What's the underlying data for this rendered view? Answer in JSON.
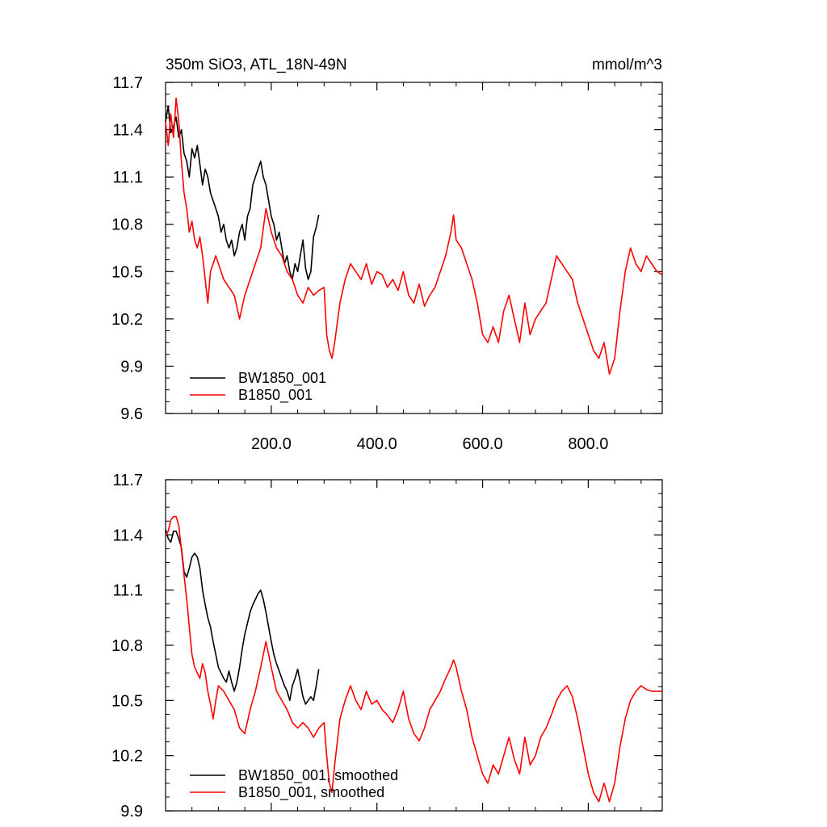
{
  "chart_data": [
    {
      "type": "line",
      "title": "350m SiO3, ATL_18N-49N",
      "units_label": "mmol/m^3",
      "xlim": [
        0,
        940
      ],
      "ylim": [
        9.6,
        11.7
      ],
      "yticks": [
        9.6,
        9.9,
        10.2,
        10.5,
        10.8,
        11.1,
        11.4,
        11.7
      ],
      "ytick_labels": [
        "9.6",
        "9.9",
        "10.2",
        "10.5",
        "10.8",
        "11.1",
        "11.4",
        "11.7"
      ],
      "xticks": [
        200,
        400,
        600,
        800
      ],
      "xtick_labels": [
        "200.0",
        "400.0",
        "600.0",
        "800.0"
      ],
      "legend_position": "bottom-left",
      "series": [
        {
          "name": "BW1850_001",
          "color": "#000000",
          "x": [
            0,
            5,
            10,
            15,
            20,
            25,
            30,
            35,
            40,
            45,
            50,
            55,
            60,
            65,
            70,
            75,
            80,
            85,
            90,
            95,
            100,
            105,
            110,
            115,
            120,
            125,
            130,
            135,
            140,
            145,
            150,
            155,
            160,
            165,
            170,
            175,
            180,
            185,
            190,
            195,
            200,
            205,
            210,
            215,
            220,
            225,
            230,
            235,
            240,
            245,
            250,
            255,
            260,
            265,
            270,
            275,
            280,
            285,
            290
          ],
          "y": [
            11.45,
            11.55,
            11.38,
            11.42,
            11.48,
            11.35,
            11.4,
            11.25,
            11.2,
            11.1,
            11.28,
            11.22,
            11.3,
            11.18,
            11.05,
            11.15,
            11.1,
            11.0,
            10.95,
            10.9,
            10.85,
            10.75,
            10.8,
            10.7,
            10.65,
            10.7,
            10.6,
            10.65,
            10.75,
            10.8,
            10.7,
            10.85,
            10.9,
            11.05,
            11.1,
            11.15,
            11.2,
            11.1,
            11.05,
            10.95,
            10.85,
            10.8,
            10.7,
            10.75,
            10.65,
            10.55,
            10.6,
            10.5,
            10.45,
            10.55,
            10.5,
            10.6,
            10.7,
            10.52,
            10.45,
            10.5,
            10.72,
            10.78,
            10.86
          ]
        },
        {
          "name": "B1850_001",
          "color": "#ff0000",
          "x": [
            0,
            5,
            10,
            15,
            20,
            25,
            30,
            35,
            40,
            45,
            50,
            55,
            60,
            65,
            70,
            75,
            80,
            85,
            90,
            95,
            100,
            110,
            120,
            130,
            140,
            150,
            160,
            170,
            180,
            190,
            200,
            210,
            220,
            230,
            240,
            250,
            260,
            270,
            280,
            290,
            300,
            305,
            310,
            315,
            320,
            330,
            340,
            350,
            360,
            370,
            380,
            390,
            400,
            410,
            420,
            430,
            440,
            450,
            460,
            470,
            480,
            490,
            500,
            510,
            520,
            530,
            540,
            545,
            550,
            560,
            570,
            580,
            590,
            600,
            610,
            620,
            630,
            640,
            650,
            660,
            670,
            680,
            690,
            700,
            710,
            720,
            730,
            740,
            750,
            760,
            770,
            780,
            790,
            800,
            810,
            820,
            830,
            840,
            850,
            860,
            870,
            880,
            890,
            900,
            910,
            920,
            930,
            940
          ],
          "y": [
            11.45,
            11.3,
            11.5,
            11.35,
            11.6,
            11.45,
            11.2,
            11.0,
            10.9,
            10.75,
            10.82,
            10.7,
            10.65,
            10.72,
            10.6,
            10.45,
            10.3,
            10.5,
            10.55,
            10.6,
            10.55,
            10.45,
            10.4,
            10.35,
            10.2,
            10.35,
            10.45,
            10.55,
            10.65,
            10.9,
            10.75,
            10.65,
            10.6,
            10.5,
            10.45,
            10.35,
            10.3,
            10.4,
            10.35,
            10.38,
            10.4,
            10.1,
            10.0,
            9.95,
            10.05,
            10.3,
            10.45,
            10.55,
            10.5,
            10.45,
            10.55,
            10.42,
            10.5,
            10.48,
            10.4,
            10.45,
            10.38,
            10.5,
            10.35,
            10.3,
            10.42,
            10.28,
            10.35,
            10.4,
            10.5,
            10.6,
            10.75,
            10.86,
            10.7,
            10.65,
            10.55,
            10.45,
            10.3,
            10.1,
            10.05,
            10.15,
            10.05,
            10.25,
            10.35,
            10.2,
            10.05,
            10.3,
            10.1,
            10.2,
            10.25,
            10.3,
            10.45,
            10.6,
            10.55,
            10.5,
            10.45,
            10.3,
            10.2,
            10.1,
            10.0,
            9.95,
            10.05,
            9.85,
            9.95,
            10.25,
            10.5,
            10.65,
            10.55,
            10.5,
            10.6,
            10.55,
            10.5,
            10.48
          ]
        }
      ]
    },
    {
      "type": "line",
      "xlim": [
        0,
        940
      ],
      "ylim": [
        9.9,
        11.7
      ],
      "yticks": [
        9.9,
        10.2,
        10.5,
        10.8,
        11.1,
        11.4,
        11.7
      ],
      "ytick_labels": [
        "9.9",
        "10.2",
        "10.5",
        "10.8",
        "11.1",
        "11.4",
        "11.7"
      ],
      "xticks": [
        200,
        400,
        600,
        800
      ],
      "legend_position": "bottom-left",
      "series": [
        {
          "name": "BW1850_001, smoothed",
          "color": "#000000",
          "x": [
            0,
            5,
            10,
            15,
            20,
            25,
            30,
            35,
            40,
            45,
            50,
            55,
            60,
            65,
            70,
            75,
            80,
            85,
            90,
            95,
            100,
            105,
            110,
            115,
            120,
            125,
            130,
            135,
            140,
            145,
            150,
            155,
            160,
            165,
            170,
            175,
            180,
            185,
            190,
            195,
            200,
            205,
            210,
            215,
            220,
            225,
            230,
            235,
            240,
            245,
            250,
            255,
            260,
            265,
            270,
            275,
            280,
            285,
            290
          ],
          "y": [
            11.43,
            11.38,
            11.36,
            11.42,
            11.42,
            11.38,
            11.33,
            11.2,
            11.17,
            11.22,
            11.28,
            11.3,
            11.28,
            11.22,
            11.1,
            11.02,
            10.95,
            10.9,
            10.82,
            10.75,
            10.68,
            10.65,
            10.62,
            10.6,
            10.66,
            10.6,
            10.55,
            10.6,
            10.68,
            10.78,
            10.86,
            10.92,
            10.98,
            11.02,
            11.05,
            11.08,
            11.1,
            11.05,
            10.98,
            10.9,
            10.82,
            10.75,
            10.7,
            10.66,
            10.62,
            10.58,
            10.55,
            10.5,
            10.58,
            10.62,
            10.67,
            10.6,
            10.52,
            10.48,
            10.5,
            10.52,
            10.5,
            10.58,
            10.67
          ]
        },
        {
          "name": "B1850_001, smoothed",
          "color": "#ff0000",
          "x": [
            0,
            5,
            10,
            15,
            20,
            25,
            30,
            35,
            40,
            45,
            50,
            55,
            60,
            65,
            70,
            75,
            80,
            85,
            90,
            95,
            100,
            110,
            120,
            130,
            140,
            150,
            160,
            170,
            180,
            190,
            200,
            210,
            220,
            230,
            240,
            250,
            260,
            270,
            280,
            290,
            300,
            305,
            310,
            315,
            320,
            330,
            340,
            350,
            360,
            370,
            380,
            390,
            400,
            410,
            420,
            430,
            440,
            450,
            460,
            470,
            480,
            490,
            500,
            510,
            520,
            530,
            540,
            545,
            550,
            560,
            570,
            580,
            590,
            600,
            610,
            620,
            630,
            640,
            650,
            660,
            670,
            680,
            690,
            700,
            710,
            720,
            730,
            740,
            750,
            760,
            770,
            780,
            790,
            800,
            810,
            820,
            830,
            840,
            850,
            860,
            870,
            880,
            890,
            900,
            910,
            920,
            930,
            940
          ],
          "y": [
            11.4,
            11.42,
            11.48,
            11.5,
            11.5,
            11.45,
            11.32,
            11.18,
            11.05,
            10.9,
            10.75,
            10.68,
            10.65,
            10.62,
            10.7,
            10.65,
            10.55,
            10.48,
            10.4,
            10.5,
            10.58,
            10.55,
            10.5,
            10.45,
            10.35,
            10.32,
            10.45,
            10.55,
            10.68,
            10.82,
            10.68,
            10.55,
            10.5,
            10.45,
            10.38,
            10.35,
            10.38,
            10.35,
            10.3,
            10.35,
            10.38,
            10.2,
            10.05,
            10.0,
            10.15,
            10.4,
            10.5,
            10.58,
            10.5,
            10.45,
            10.55,
            10.48,
            10.5,
            10.45,
            10.42,
            10.38,
            10.45,
            10.55,
            10.4,
            10.32,
            10.28,
            10.35,
            10.45,
            10.5,
            10.55,
            10.62,
            10.68,
            10.72,
            10.68,
            10.55,
            10.45,
            10.3,
            10.2,
            10.1,
            10.05,
            10.15,
            10.1,
            10.2,
            10.3,
            10.18,
            10.1,
            10.3,
            10.15,
            10.2,
            10.3,
            10.35,
            10.42,
            10.5,
            10.55,
            10.58,
            10.52,
            10.4,
            10.25,
            10.1,
            10.0,
            9.95,
            10.05,
            9.95,
            10.05,
            10.25,
            10.4,
            10.5,
            10.55,
            10.58,
            10.56,
            10.55,
            10.55,
            10.55
          ]
        }
      ]
    }
  ]
}
